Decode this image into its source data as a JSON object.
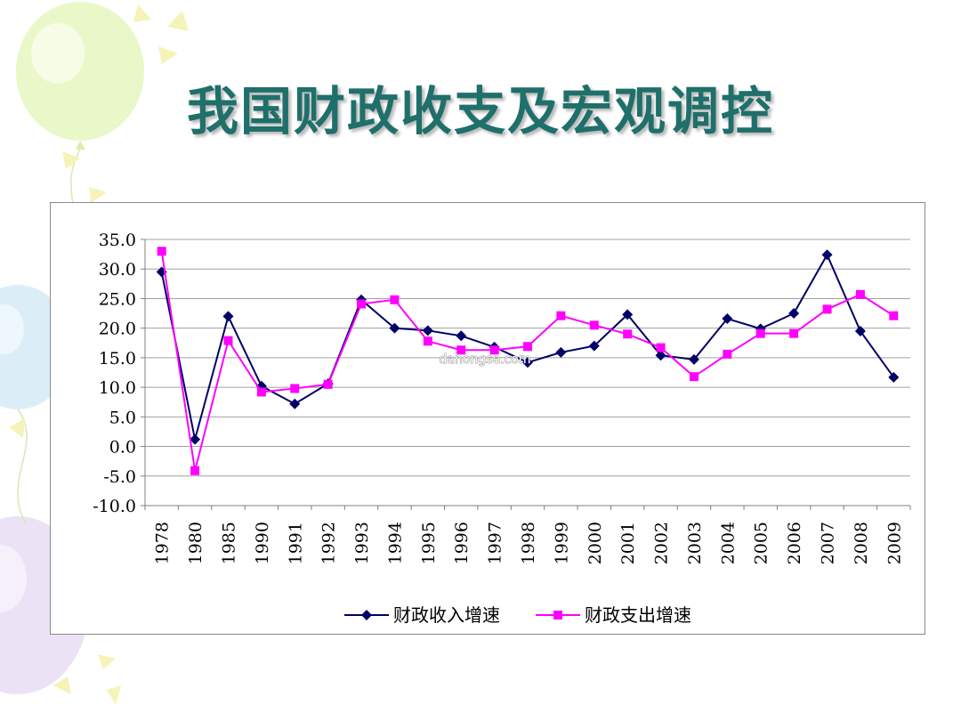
{
  "slide": {
    "title": "我国财政收支及宏观调控",
    "watermark": "dahongse.com"
  },
  "chart_data": {
    "type": "line",
    "categories": [
      "1978",
      "1980",
      "1985",
      "1990",
      "1991",
      "1992",
      "1993",
      "1994",
      "1995",
      "1996",
      "1997",
      "1998",
      "1999",
      "2000",
      "2001",
      "2002",
      "2003",
      "2004",
      "2005",
      "2006",
      "2007",
      "2008",
      "2009"
    ],
    "series": [
      {
        "name": "财政收入增速",
        "color": "#000066",
        "marker": "diamond",
        "values": [
          29.5,
          1.2,
          22.0,
          10.2,
          7.2,
          10.6,
          24.8,
          20.0,
          19.6,
          18.7,
          16.8,
          14.2,
          15.9,
          17.0,
          22.3,
          15.4,
          14.7,
          21.6,
          19.9,
          22.5,
          32.4,
          19.5,
          11.7
        ]
      },
      {
        "name": "财政支出增速",
        "color": "#ff00ff",
        "marker": "square",
        "values": [
          33.0,
          -4.1,
          17.9,
          9.2,
          9.8,
          10.5,
          24.1,
          24.8,
          17.8,
          16.3,
          16.3,
          16.9,
          22.1,
          20.5,
          19.0,
          16.7,
          11.8,
          15.6,
          19.1,
          19.1,
          23.2,
          25.7,
          22.1
        ]
      }
    ],
    "yticks": [
      "35.0",
      "30.0",
      "25.0",
      "20.0",
      "15.0",
      "10.0",
      "5.0",
      "0.0",
      "-5.0",
      "-10.0"
    ],
    "ylim": [
      -10,
      35
    ],
    "grid": true,
    "legend_position": "bottom"
  }
}
